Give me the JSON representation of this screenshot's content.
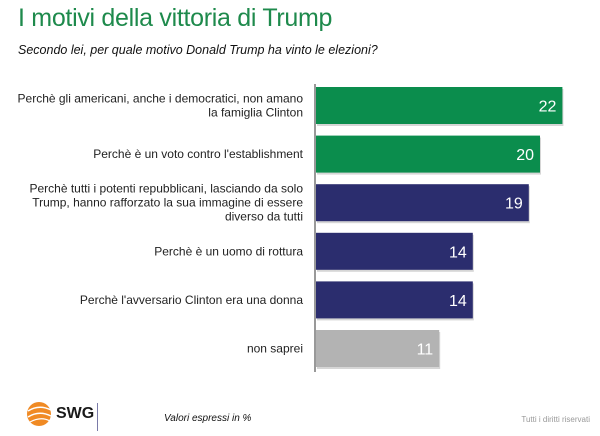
{
  "title": "I motivi della vittoria di Trump",
  "subtitle": "Secondo lei, per quale motivo Donald Trump ha vinto le elezioni?",
  "footer": {
    "brand": "SWG",
    "note": "Valori espressi in %",
    "rights": "Tutti i diritti riservati"
  },
  "chart_data": {
    "type": "bar",
    "orientation": "horizontal",
    "title": "I motivi della vittoria di Trump",
    "subtitle": "Secondo lei, per quale motivo Donald Trump ha vinto le elezioni?",
    "xlabel": "",
    "ylabel": "",
    "unit": "%",
    "xlim": [
      0,
      22
    ],
    "grid": false,
    "legend": "none",
    "categories": [
      [
        "Perchè gli americani, anche i democratici, non amano",
        "la famiglia Clinton"
      ],
      [
        "Perchè è un voto contro l'establishment"
      ],
      [
        "Perchè tutti i potenti repubblicani, lasciando da solo",
        "Trump, hanno rafforzato la sua immagine di essere",
        "diverso da tutti"
      ],
      [
        "Perchè è un uomo di rottura"
      ],
      [
        "Perchè l'avversario Clinton era una donna"
      ],
      [
        "non saprei"
      ]
    ],
    "values": [
      22,
      20,
      19,
      14,
      14,
      11
    ],
    "colors": [
      "#0b8d4d",
      "#0b8d4d",
      "#2b2d6e",
      "#2b2d6e",
      "#2b2d6e",
      "#b3b3b3"
    ]
  }
}
